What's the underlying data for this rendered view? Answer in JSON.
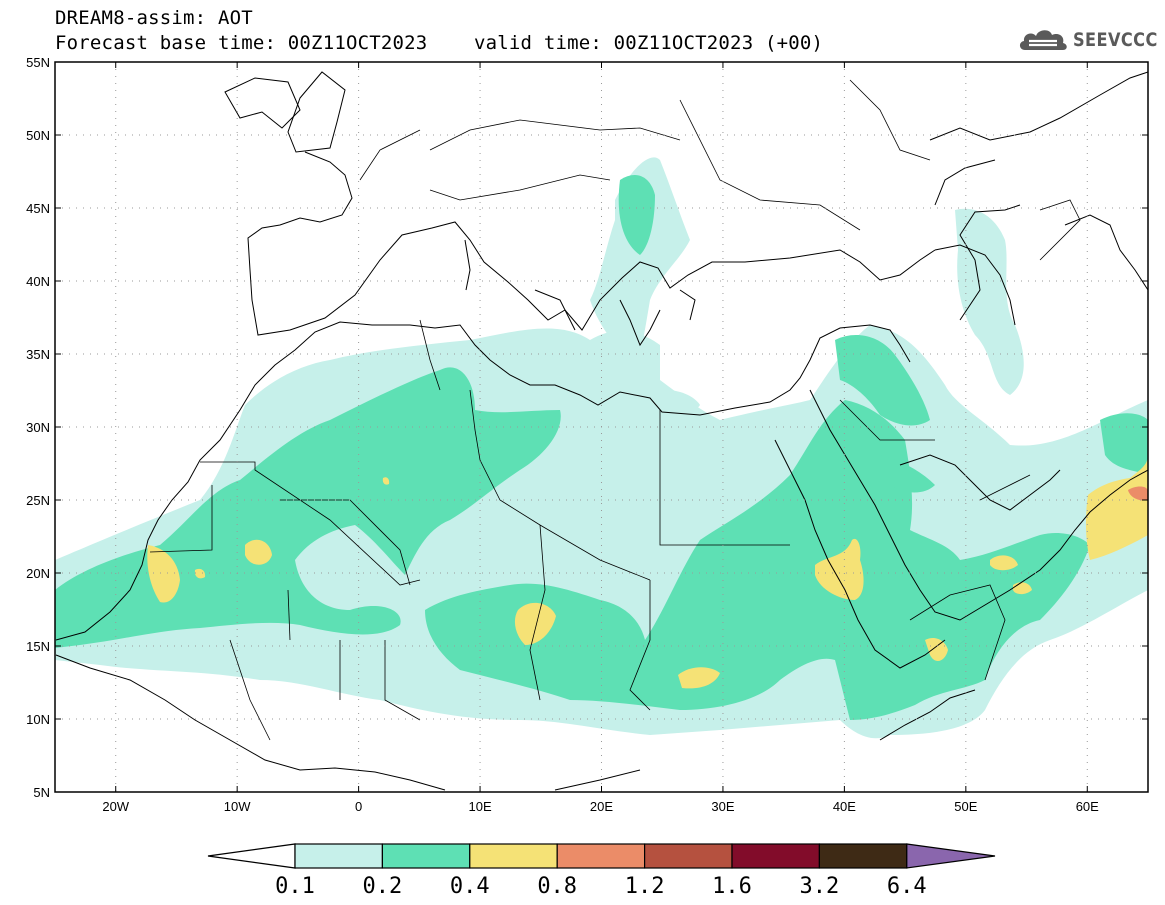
{
  "header": {
    "line1": "DREAM8-assim: AOT",
    "line2": "Forecast base time: 00Z11OCT2023    valid time: 00Z11OCT2023 (+00)",
    "logo_text": "SEEVCCC"
  },
  "map": {
    "lat_labels": [
      "55N",
      "50N",
      "45N",
      "40N",
      "35N",
      "30N",
      "25N",
      "20N",
      "15N",
      "10N",
      "5N"
    ],
    "lon_labels": [
      "20W",
      "10W",
      "0",
      "10E",
      "20E",
      "30E",
      "40E",
      "50E",
      "60E"
    ],
    "lat_range": [
      5,
      55
    ],
    "lon_range": [
      -25,
      65
    ],
    "grid": "dotted"
  },
  "colorbar": {
    "labels": [
      "0.1",
      "0.2",
      "0.4",
      "0.8",
      "1.2",
      "1.6",
      "3.2",
      "6.4"
    ],
    "colors": [
      "#ffffff",
      "#c6f0ea",
      "#5ee0b4",
      "#f5e276",
      "#eb8c68",
      "#b5513f",
      "#820c2a",
      "#3e2a15",
      "#8a66ad"
    ]
  }
}
